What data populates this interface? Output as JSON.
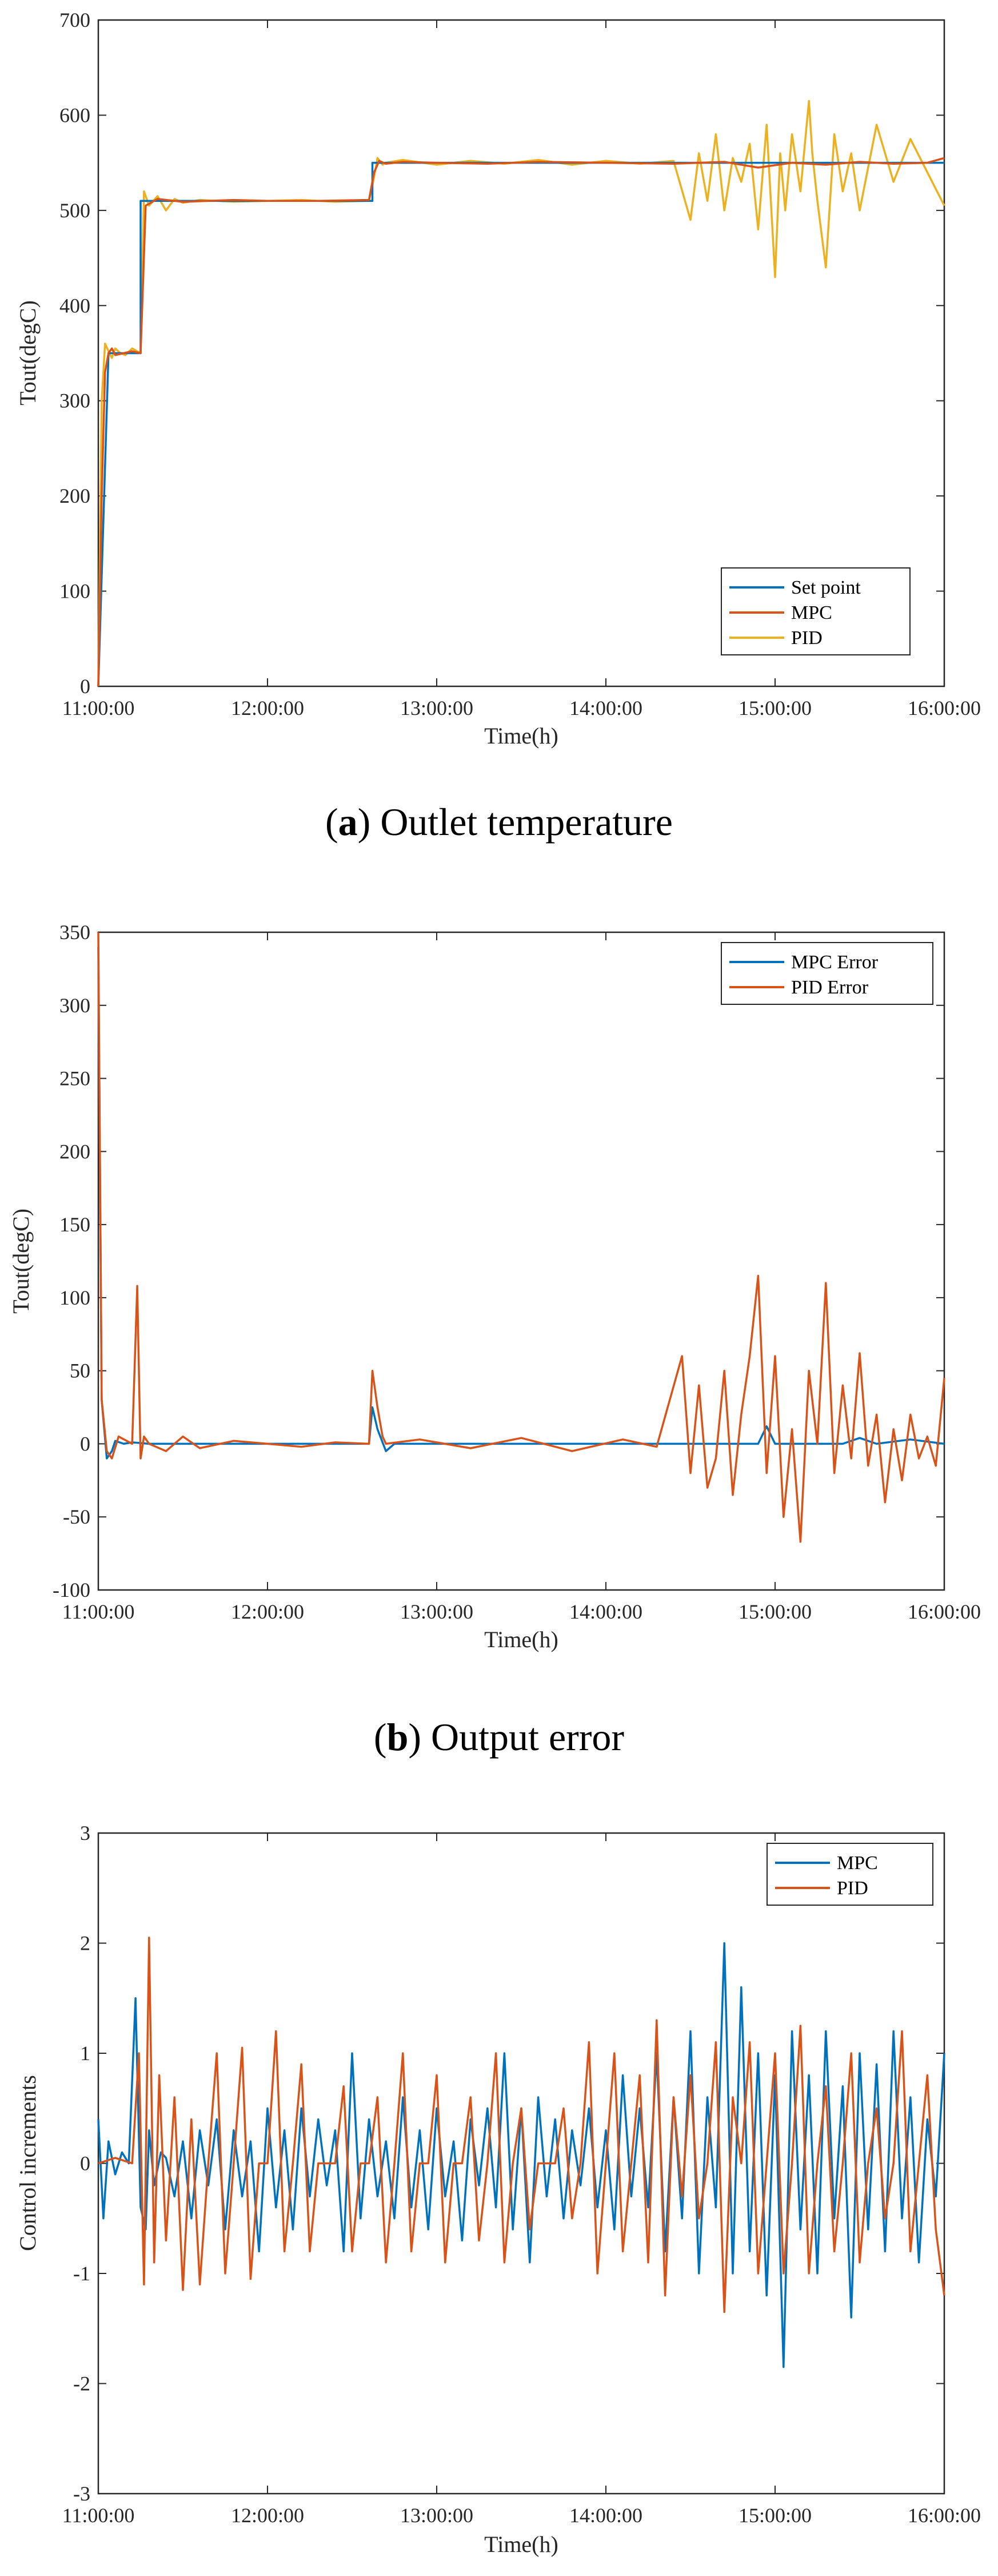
{
  "colors": {
    "setpoint": "#0072BD",
    "mpc": "#D95319",
    "pid": "#EDB120",
    "axis": "#262626"
  },
  "chart_data": [
    {
      "id": "a",
      "type": "line",
      "caption_letter": "a",
      "caption_text": ") Outlet temperature",
      "xlabel": "Time(h)",
      "ylabel": "Tout(degC)",
      "ylim": [
        0,
        700
      ],
      "yticks": [
        0,
        100,
        200,
        300,
        400,
        500,
        600,
        700
      ],
      "xlim": [
        0,
        5
      ],
      "xticks": [
        0,
        1,
        2,
        3,
        4,
        5
      ],
      "xticklabels": [
        "11:00:00",
        "12:00:00",
        "13:00:00",
        "14:00:00",
        "15:00:00",
        "16:00:00"
      ],
      "grid": false,
      "legend": "bottom-right",
      "series": [
        {
          "name": "Set point",
          "color": "#0072BD",
          "x": [
            0,
            0.06,
            0.06,
            0.25,
            0.25,
            1.62,
            1.62,
            5
          ],
          "y": [
            0,
            350,
            350,
            350,
            510,
            510,
            550,
            550
          ]
        },
        {
          "name": "MPC",
          "color": "#D95319",
          "x": [
            0,
            0.02,
            0.04,
            0.06,
            0.08,
            0.1,
            0.15,
            0.2,
            0.25,
            0.28,
            0.35,
            0.5,
            0.8,
            1.0,
            1.3,
            1.6,
            1.63,
            1.66,
            1.7,
            1.8,
            2.0,
            2.3,
            2.6,
            3.0,
            3.4,
            3.7,
            3.9,
            4.1,
            4.3,
            4.5,
            4.7,
            4.9,
            5.0
          ],
          "y": [
            0,
            200,
            330,
            350,
            355,
            348,
            350,
            352,
            350,
            505,
            512,
            509,
            511,
            510,
            510,
            511,
            540,
            552,
            549,
            551,
            550,
            549,
            551,
            550,
            549,
            551,
            545,
            550,
            548,
            551,
            549,
            550,
            555
          ]
        },
        {
          "name": "PID",
          "color": "#EDB120",
          "x": [
            0,
            0.02,
            0.04,
            0.06,
            0.08,
            0.1,
            0.13,
            0.16,
            0.2,
            0.25,
            0.27,
            0.3,
            0.35,
            0.4,
            0.45,
            0.5,
            0.6,
            0.8,
            1.0,
            1.2,
            1.4,
            1.6,
            1.63,
            1.65,
            1.68,
            1.7,
            1.8,
            2.0,
            2.2,
            2.4,
            2.6,
            2.8,
            3.0,
            3.2,
            3.4,
            3.5,
            3.55,
            3.6,
            3.65,
            3.7,
            3.75,
            3.8,
            3.85,
            3.9,
            3.95,
            4.0,
            4.03,
            4.06,
            4.1,
            4.15,
            4.2,
            4.22,
            4.25,
            4.3,
            4.35,
            4.4,
            4.45,
            4.5,
            4.6,
            4.7,
            4.8,
            4.9,
            5.0
          ],
          "y": [
            0,
            300,
            360,
            352,
            345,
            355,
            350,
            348,
            355,
            350,
            520,
            505,
            515,
            500,
            512,
            508,
            511,
            509,
            510,
            511,
            509,
            510,
            535,
            555,
            548,
            550,
            553,
            548,
            552,
            549,
            553,
            548,
            552,
            549,
            552,
            490,
            560,
            510,
            580,
            500,
            555,
            530,
            570,
            480,
            590,
            430,
            560,
            500,
            580,
            520,
            615,
            560,
            510,
            440,
            580,
            520,
            560,
            500,
            590,
            530,
            575,
            540,
            505
          ]
        }
      ]
    },
    {
      "id": "b",
      "type": "line",
      "caption_letter": "b",
      "caption_text": ") Output error",
      "xlabel": "Time(h)",
      "ylabel": "Tout(degC)",
      "ylim": [
        -100,
        350
      ],
      "yticks": [
        -100,
        -50,
        0,
        50,
        100,
        150,
        200,
        250,
        300,
        350
      ],
      "xlim": [
        0,
        5
      ],
      "xticks": [
        0,
        1,
        2,
        3,
        4,
        5
      ],
      "xticklabels": [
        "11:00:00",
        "12:00:00",
        "13:00:00",
        "14:00:00",
        "15:00:00",
        "16:00:00"
      ],
      "grid": false,
      "legend": "top-right",
      "series": [
        {
          "name": "MPC Error",
          "color": "#0072BD",
          "x": [
            0,
            0.02,
            0.05,
            0.08,
            0.1,
            0.15,
            0.2,
            0.3,
            0.5,
            1.0,
            1.6,
            1.62,
            1.65,
            1.7,
            1.75,
            2.0,
            3.0,
            3.5,
            3.9,
            3.95,
            4.0,
            4.4,
            4.5,
            4.6,
            4.8,
            5.0
          ],
          "y": [
            340,
            30,
            -10,
            -5,
            2,
            0,
            1,
            0,
            0,
            0,
            0,
            25,
            10,
            -5,
            0,
            0,
            0,
            0,
            0,
            12,
            0,
            0,
            4,
            0,
            3,
            0
          ]
        },
        {
          "name": "PID Error",
          "color": "#D95319",
          "x": [
            0,
            0.02,
            0.05,
            0.08,
            0.12,
            0.2,
            0.23,
            0.25,
            0.27,
            0.3,
            0.4,
            0.5,
            0.6,
            0.8,
            1.0,
            1.2,
            1.4,
            1.6,
            1.62,
            1.65,
            1.68,
            1.7,
            1.9,
            2.2,
            2.5,
            2.8,
            3.1,
            3.3,
            3.45,
            3.5,
            3.55,
            3.6,
            3.65,
            3.7,
            3.75,
            3.8,
            3.85,
            3.9,
            3.95,
            4.0,
            4.05,
            4.1,
            4.15,
            4.2,
            4.25,
            4.3,
            4.35,
            4.4,
            4.45,
            4.5,
            4.55,
            4.6,
            4.65,
            4.7,
            4.75,
            4.8,
            4.85,
            4.9,
            4.95,
            5.0
          ],
          "y": [
            350,
            30,
            -5,
            -10,
            5,
            0,
            108,
            -10,
            5,
            0,
            -5,
            5,
            -3,
            2,
            0,
            -2,
            1,
            0,
            50,
            25,
            5,
            0,
            3,
            -3,
            4,
            -5,
            3,
            -2,
            60,
            -20,
            40,
            -30,
            -10,
            50,
            -35,
            20,
            60,
            115,
            -20,
            60,
            -50,
            10,
            -67,
            50,
            0,
            110,
            -20,
            40,
            -10,
            62,
            -15,
            20,
            -40,
            10,
            -25,
            20,
            -10,
            5,
            -15,
            45
          ]
        }
      ]
    },
    {
      "id": "c",
      "type": "line",
      "xlabel": "Time(h)",
      "ylabel": "Control increments",
      "ylim": [
        -3,
        3
      ],
      "yticks": [
        -3,
        -2,
        -1,
        0,
        1,
        2,
        3
      ],
      "xlim": [
        0,
        5
      ],
      "xticks": [
        0,
        1,
        2,
        3,
        4,
        5
      ],
      "xticklabels": [
        "11:00:00",
        "12:00:00",
        "13:00:00",
        "14:00:00",
        "15:00:00",
        "16:00:00"
      ],
      "grid": false,
      "legend": "top-right",
      "series": [
        {
          "name": "MPC",
          "color": "#0072BD",
          "x": [
            0,
            0.03,
            0.06,
            0.1,
            0.14,
            0.18,
            0.22,
            0.25,
            0.28,
            0.3,
            0.33,
            0.37,
            0.4,
            0.45,
            0.5,
            0.55,
            0.6,
            0.65,
            0.7,
            0.75,
            0.8,
            0.85,
            0.9,
            0.95,
            1.0,
            1.05,
            1.1,
            1.15,
            1.2,
            1.25,
            1.3,
            1.35,
            1.4,
            1.45,
            1.5,
            1.55,
            1.6,
            1.65,
            1.7,
            1.75,
            1.8,
            1.85,
            1.9,
            1.95,
            2.0,
            2.05,
            2.1,
            2.15,
            2.2,
            2.25,
            2.3,
            2.35,
            2.4,
            2.45,
            2.5,
            2.55,
            2.6,
            2.65,
            2.7,
            2.75,
            2.8,
            2.85,
            2.9,
            2.95,
            3.0,
            3.05,
            3.1,
            3.15,
            3.2,
            3.25,
            3.3,
            3.35,
            3.4,
            3.45,
            3.5,
            3.55,
            3.6,
            3.65,
            3.7,
            3.75,
            3.8,
            3.85,
            3.9,
            3.95,
            4.0,
            4.05,
            4.1,
            4.15,
            4.2,
            4.25,
            4.3,
            4.35,
            4.4,
            4.45,
            4.5,
            4.55,
            4.6,
            4.65,
            4.7,
            4.75,
            4.8,
            4.85,
            4.9,
            4.95,
            5.0
          ],
          "y": [
            0.4,
            -0.5,
            0.2,
            -0.1,
            0.1,
            0.0,
            1.5,
            -0.4,
            -0.6,
            0.3,
            -0.2,
            0.1,
            0.05,
            -0.3,
            0.2,
            -0.5,
            0.3,
            -0.2,
            0.4,
            -0.6,
            0.3,
            -0.3,
            0.2,
            -0.8,
            0.5,
            -0.4,
            0.3,
            -0.6,
            0.5,
            -0.3,
            0.4,
            -0.2,
            0.3,
            -0.8,
            1.0,
            -0.5,
            0.4,
            -0.3,
            0.2,
            -0.5,
            0.6,
            -0.4,
            0.3,
            -0.6,
            0.5,
            -0.3,
            0.2,
            -0.7,
            0.4,
            -0.2,
            0.5,
            -0.4,
            1.0,
            -0.6,
            0.5,
            -0.9,
            0.6,
            -0.3,
            0.4,
            -0.5,
            0.3,
            -0.2,
            0.5,
            -0.4,
            0.3,
            -0.6,
            0.8,
            -0.3,
            0.5,
            -0.4,
            1.0,
            -0.8,
            0.6,
            -0.5,
            1.2,
            -1.0,
            0.6,
            -0.4,
            2.0,
            -1.0,
            1.6,
            -0.8,
            1.0,
            -1.2,
            0.8,
            -1.85,
            1.2,
            -0.6,
            0.8,
            -1.0,
            1.2,
            -0.5,
            0.7,
            -1.4,
            1.0,
            -0.6,
            0.9,
            -0.8,
            1.2,
            -0.5,
            0.6,
            -0.9,
            0.4,
            -0.3,
            1.0
          ]
        },
        {
          "name": "PID",
          "color": "#D95319",
          "x": [
            0,
            0.1,
            0.2,
            0.24,
            0.27,
            0.3,
            0.33,
            0.36,
            0.4,
            0.45,
            0.5,
            0.55,
            0.6,
            0.65,
            0.7,
            0.75,
            0.8,
            0.85,
            0.9,
            0.95,
            1.0,
            1.05,
            1.1,
            1.15,
            1.2,
            1.25,
            1.3,
            1.35,
            1.4,
            1.45,
            1.5,
            1.55,
            1.6,
            1.65,
            1.7,
            1.75,
            1.8,
            1.85,
            1.9,
            1.95,
            2.0,
            2.05,
            2.1,
            2.15,
            2.2,
            2.25,
            2.3,
            2.35,
            2.4,
            2.45,
            2.5,
            2.55,
            2.6,
            2.65,
            2.7,
            2.75,
            2.8,
            2.85,
            2.9,
            2.95,
            3.0,
            3.05,
            3.1,
            3.15,
            3.2,
            3.25,
            3.3,
            3.35,
            3.4,
            3.45,
            3.5,
            3.55,
            3.6,
            3.65,
            3.7,
            3.75,
            3.8,
            3.85,
            3.9,
            3.95,
            4.0,
            4.05,
            4.1,
            4.15,
            4.2,
            4.25,
            4.3,
            4.35,
            4.4,
            4.45,
            4.5,
            4.55,
            4.6,
            4.65,
            4.7,
            4.75,
            4.8,
            4.85,
            4.9,
            4.95,
            5.0
          ],
          "y": [
            0,
            0.05,
            0,
            1.0,
            -1.1,
            2.05,
            -0.9,
            0.8,
            -0.7,
            0.6,
            -1.15,
            0.4,
            -1.1,
            0,
            1.0,
            -1.0,
            0,
            1.05,
            -1.05,
            0,
            0,
            1.2,
            -0.8,
            0,
            0.9,
            -0.8,
            0,
            0,
            0,
            0.7,
            -0.8,
            0,
            0,
            0.6,
            -0.9,
            0,
            1.0,
            -0.8,
            0,
            0,
            0.8,
            -0.9,
            0,
            0,
            0.6,
            -0.7,
            0,
            1.0,
            -0.9,
            0,
            0.5,
            -0.6,
            0,
            0,
            0,
            0.5,
            -0.5,
            0,
            1.1,
            -1.0,
            0,
            1.0,
            -0.8,
            0,
            0.8,
            -0.9,
            1.3,
            -1.2,
            0.6,
            -0.3,
            0.8,
            -0.5,
            0,
            1.1,
            -1.35,
            0.6,
            0,
            1.1,
            -1.0,
            0,
            1.0,
            -1.0,
            0,
            1.25,
            -1.0,
            0,
            0.7,
            -0.8,
            0,
            1.0,
            -0.9,
            0,
            0.5,
            -0.5,
            0,
            1.2,
            -0.8,
            0,
            0.8,
            -0.6,
            -1.2
          ]
        }
      ]
    }
  ]
}
